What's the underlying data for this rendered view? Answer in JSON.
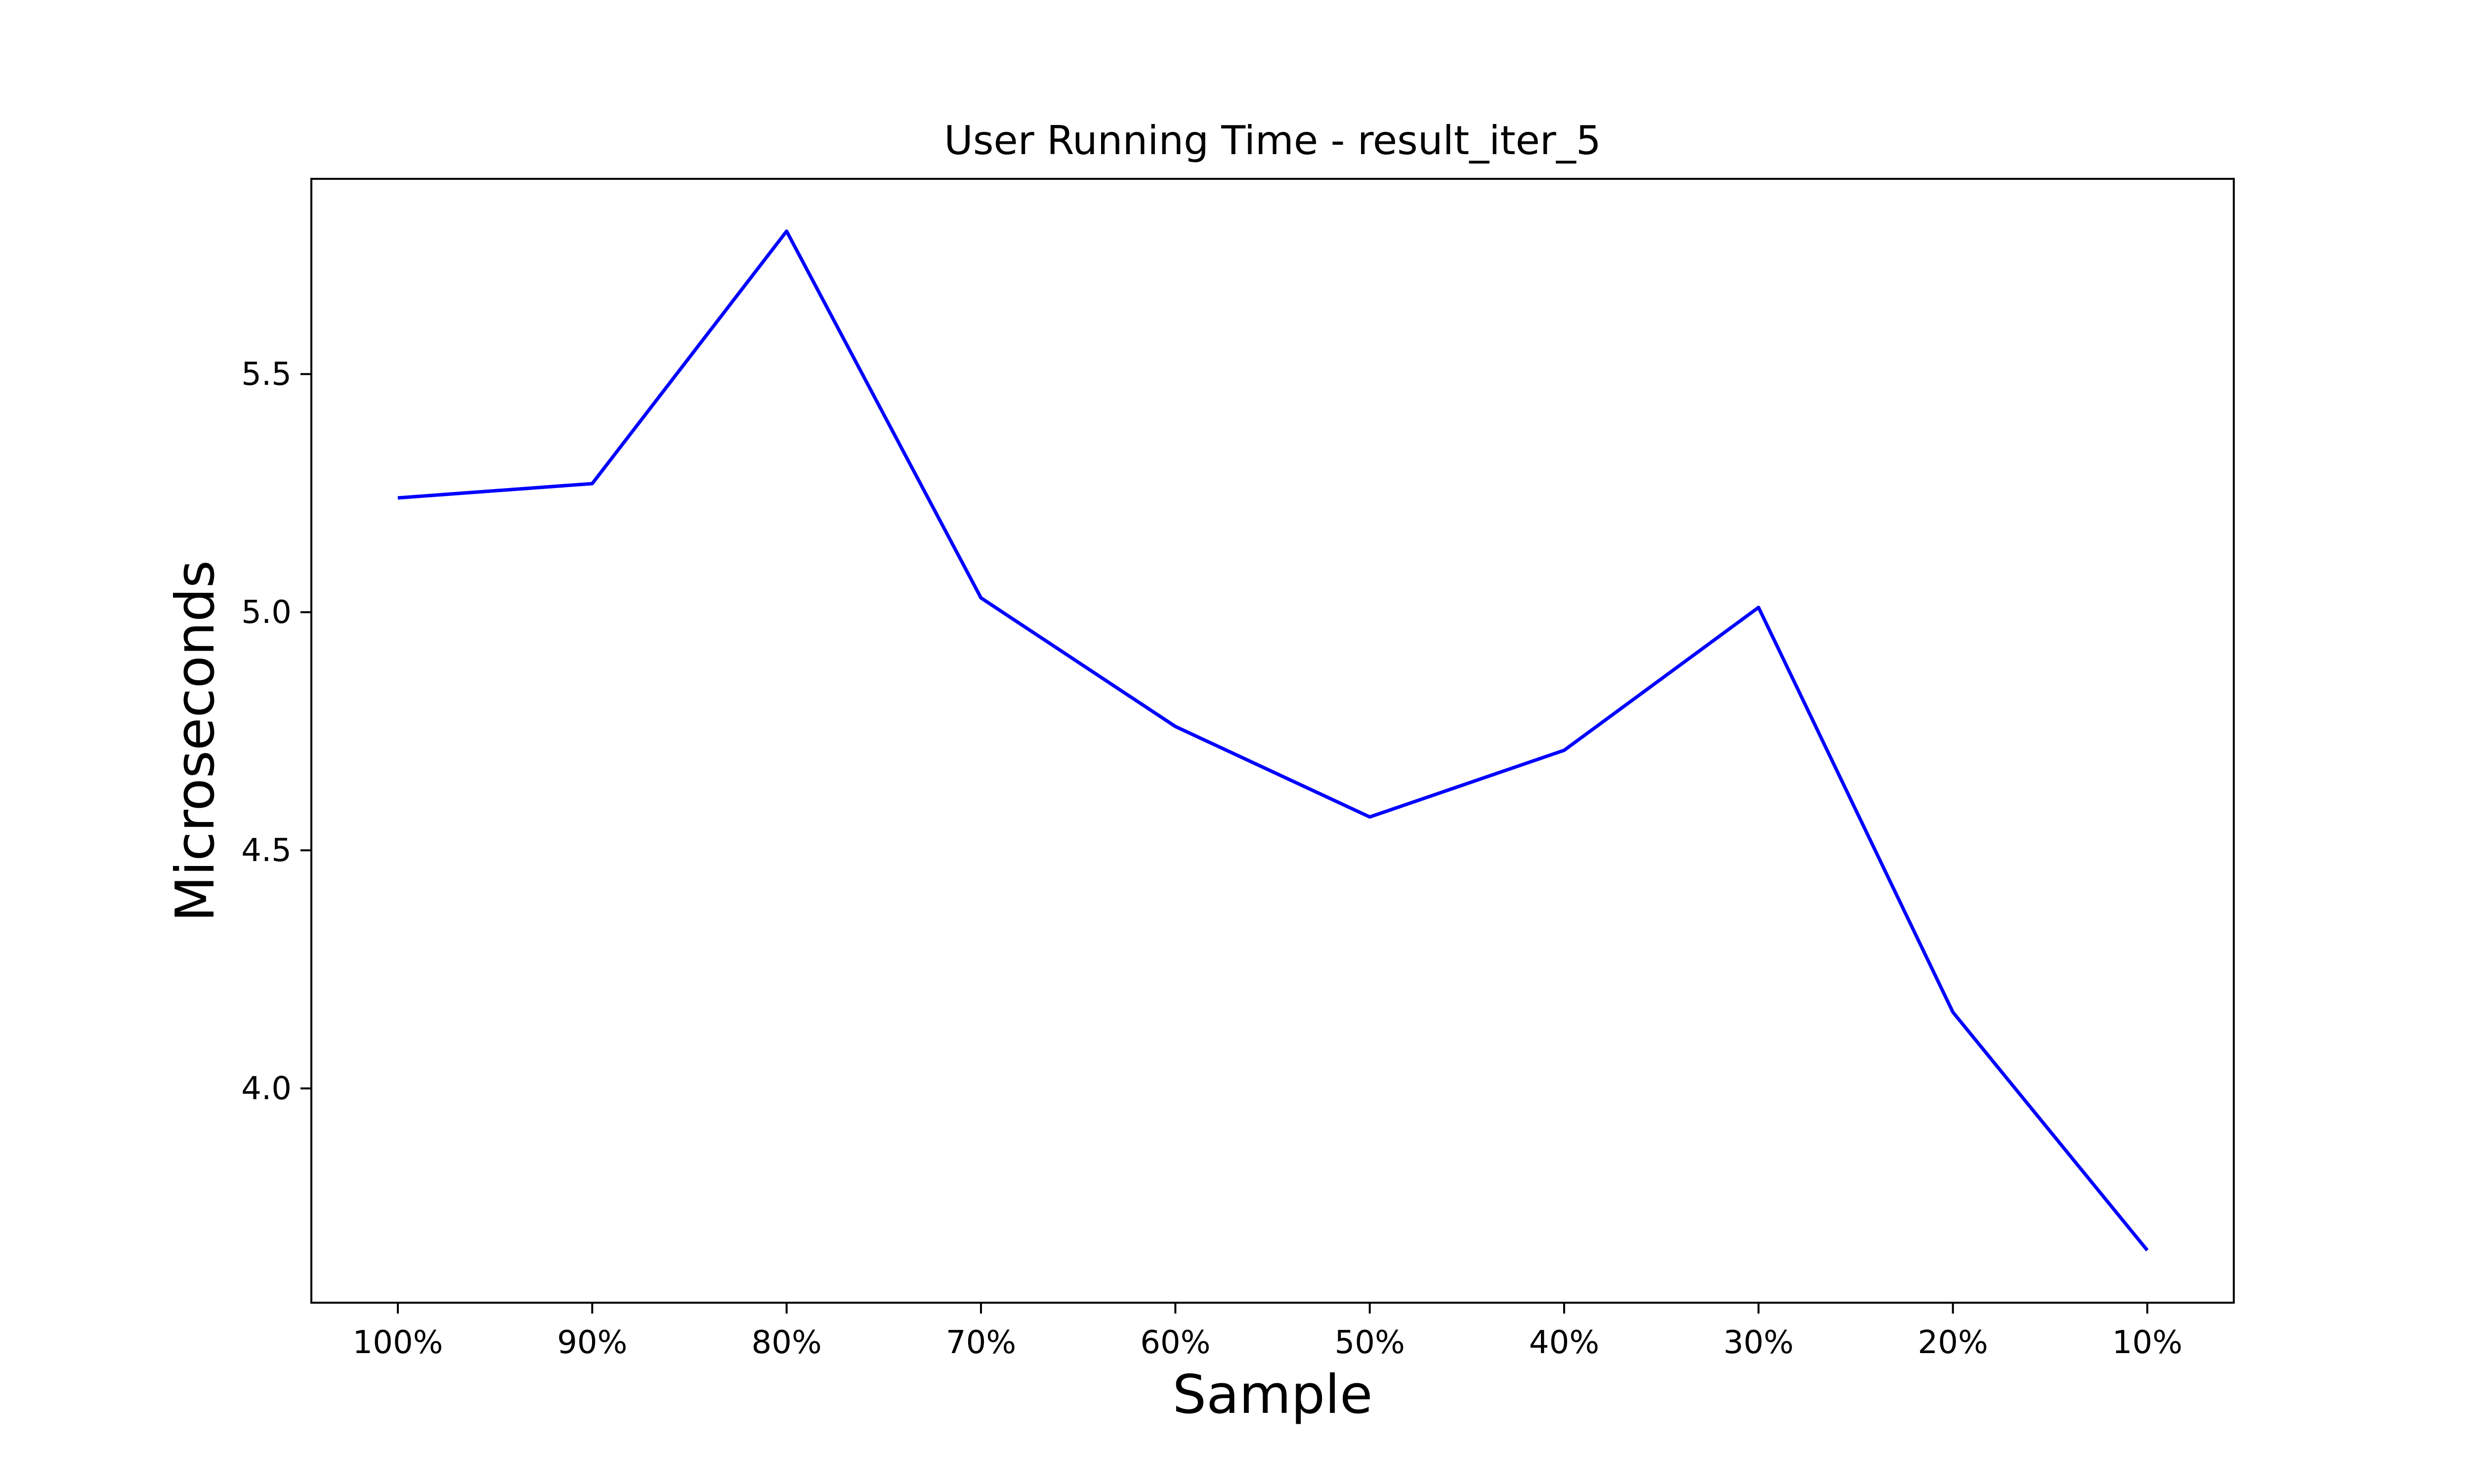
{
  "chart_data": {
    "type": "line",
    "title": "User Running Time - result_iter_5",
    "xlabel": "Sample",
    "ylabel": "Microseconds",
    "categories": [
      "100%",
      "90%",
      "80%",
      "70%",
      "60%",
      "50%",
      "40%",
      "30%",
      "20%",
      "10%"
    ],
    "series": [
      {
        "values": [
          5.24,
          5.27,
          5.8,
          5.03,
          4.76,
          4.57,
          4.71,
          5.01,
          4.16,
          3.66
        ],
        "color": "#0000ff"
      }
    ],
    "yticks": [
      4.0,
      4.5,
      5.0,
      5.5
    ],
    "ytick_labels": [
      "4.0",
      "4.5",
      "5.0",
      "5.5"
    ],
    "ylim": [
      3.55,
      5.91
    ],
    "grid": false,
    "legend": "none"
  }
}
